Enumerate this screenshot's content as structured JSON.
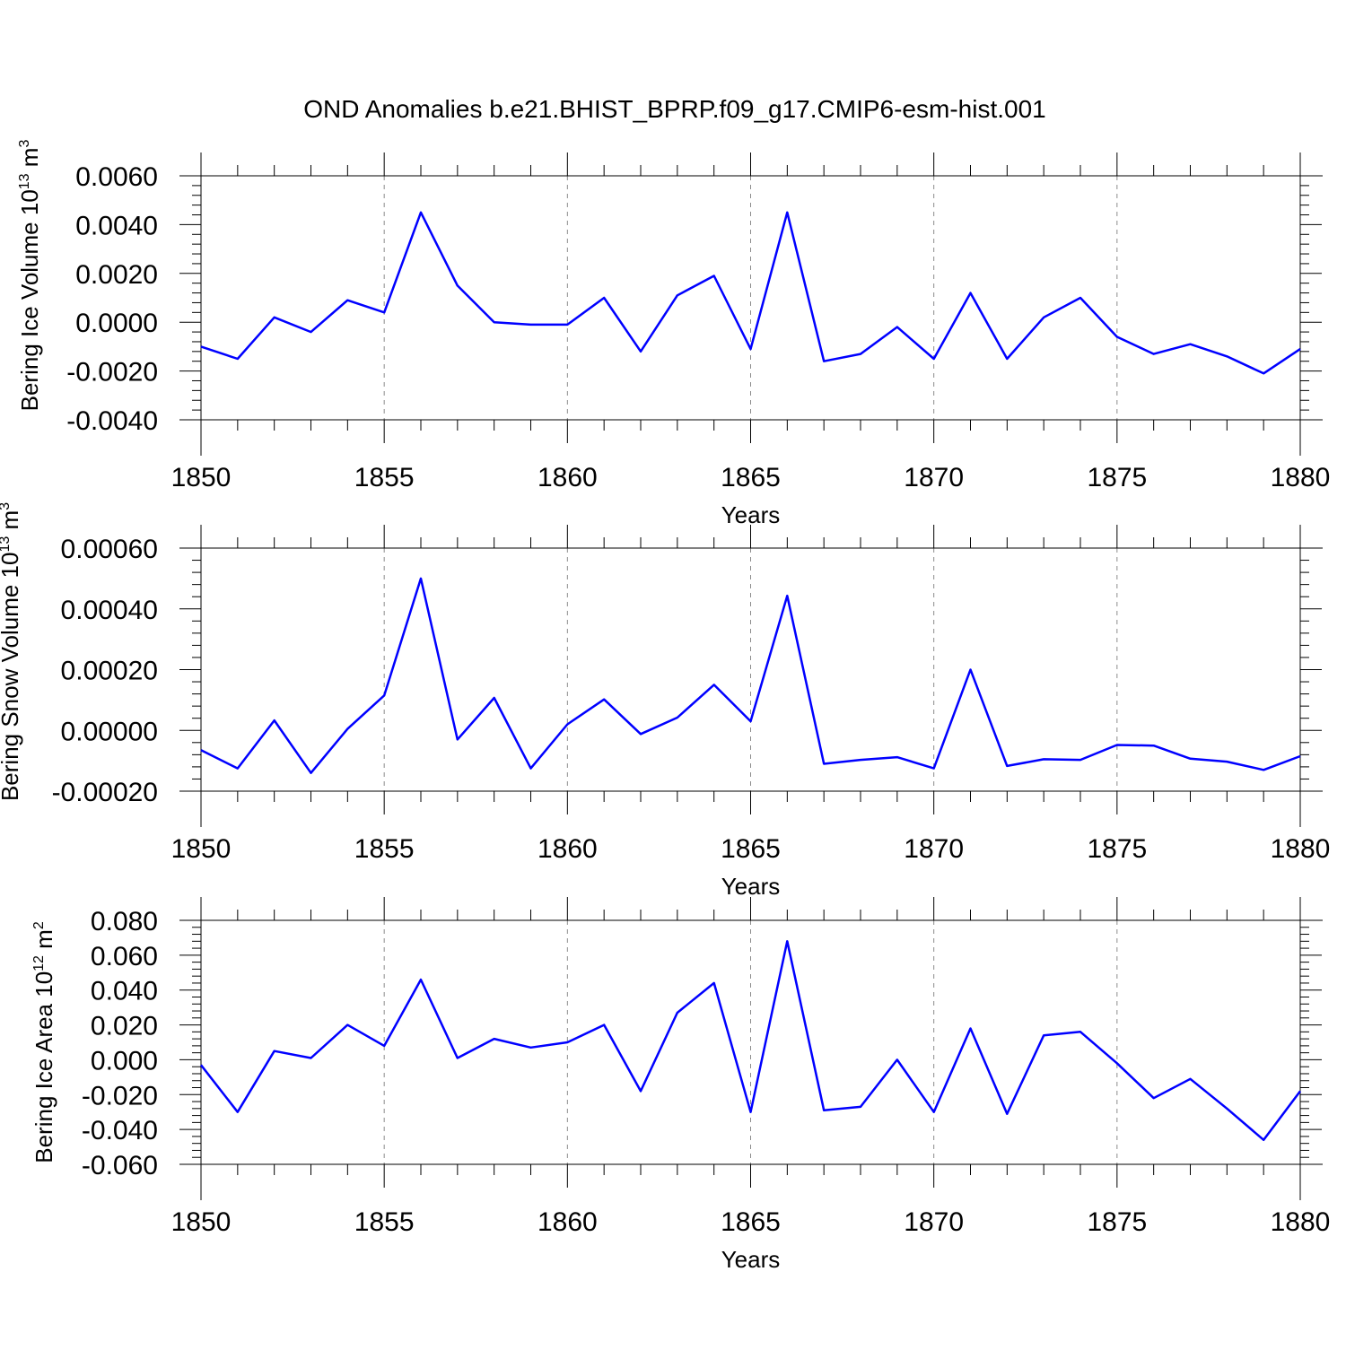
{
  "title": "OND Anomalies b.e21.BHIST_BPRP.f09_g17.CMIP6-esm-hist.001",
  "line_color": "#0000ff",
  "chart_data": [
    {
      "type": "line",
      "ylabel_prefix": "Bering Ice Volume 10",
      "ylabel_exponent": "13",
      "ylabel_unit": " m",
      "ylabel_unit_exponent": "3",
      "xlabel": "Years",
      "xlim": [
        1850,
        1880
      ],
      "ylim": [
        -0.004,
        0.006
      ],
      "xticks": [
        1850,
        1855,
        1860,
        1865,
        1870,
        1875,
        1880
      ],
      "xtick_labels": [
        "1850",
        "1855",
        "1860",
        "1865",
        "1870",
        "1875",
        "1880"
      ],
      "yticks": [
        -0.004,
        -0.002,
        0.0,
        0.002,
        0.004,
        0.006
      ],
      "ytick_labels": [
        "-0.0040",
        "-0.0020",
        "0.0000",
        "0.0020",
        "0.0040",
        "0.0060"
      ],
      "grid": "dashed vertical at major x ticks",
      "x": [
        1850,
        1851,
        1852,
        1853,
        1854,
        1855,
        1856,
        1857,
        1858,
        1859,
        1860,
        1861,
        1862,
        1863,
        1864,
        1865,
        1866,
        1867,
        1868,
        1869,
        1870,
        1871,
        1872,
        1873,
        1874,
        1875,
        1876,
        1877,
        1878,
        1879,
        1880
      ],
      "y": [
        -0.001,
        -0.0015,
        0.0002,
        -0.0004,
        0.0009,
        0.0004,
        0.0045,
        0.0015,
        0.0,
        -0.0001,
        -0.0001,
        0.001,
        -0.0012,
        0.0011,
        0.0019,
        -0.0011,
        0.0045,
        -0.0016,
        -0.0013,
        -0.0002,
        -0.0015,
        0.0012,
        -0.0015,
        0.0002,
        0.001,
        -0.0006,
        -0.0013,
        -0.0009,
        -0.0014,
        -0.0021,
        -0.0011
      ]
    },
    {
      "type": "line",
      "ylabel_prefix": "Bering Snow Volume 10",
      "ylabel_exponent": "13",
      "ylabel_unit": " m",
      "ylabel_unit_exponent": "3",
      "xlabel": "Years",
      "xlim": [
        1850,
        1880
      ],
      "ylim": [
        -0.0002,
        0.0006
      ],
      "xticks": [
        1850,
        1855,
        1860,
        1865,
        1870,
        1875,
        1880
      ],
      "xtick_labels": [
        "1850",
        "1855",
        "1860",
        "1865",
        "1870",
        "1875",
        "1880"
      ],
      "yticks": [
        -0.0002,
        0.0,
        0.0002,
        0.0004,
        0.0006
      ],
      "ytick_labels": [
        "-0.00020",
        "0.00000",
        "0.00020",
        "0.00040",
        "0.00060"
      ],
      "grid": "dashed vertical at major x ticks",
      "x": [
        1850,
        1851,
        1852,
        1853,
        1854,
        1855,
        1856,
        1857,
        1858,
        1859,
        1860,
        1861,
        1862,
        1863,
        1864,
        1865,
        1866,
        1867,
        1868,
        1869,
        1870,
        1871,
        1872,
        1873,
        1874,
        1875,
        1876,
        1877,
        1878,
        1879,
        1880
      ],
      "y": [
        -6.5e-05,
        -0.000125,
        3.3e-05,
        -0.00014,
        5e-06,
        0.000115,
        0.0005,
        -3e-05,
        0.000107,
        -0.000125,
        2e-05,
        0.000102,
        -1.2e-05,
        4.2e-05,
        0.00015,
        3e-05,
        0.000443,
        -0.00011,
        -9.7e-05,
        -8.8e-05,
        -0.000125,
        0.0002,
        -0.000117,
        -9.5e-05,
        -9.7e-05,
        -4.8e-05,
        -5e-05,
        -9.3e-05,
        -0.000103,
        -0.00013,
        -8.5e-05
      ]
    },
    {
      "type": "line",
      "ylabel_prefix": "Bering Ice Area 10",
      "ylabel_exponent": "12",
      "ylabel_unit": " m",
      "ylabel_unit_exponent": "2",
      "xlabel": "Years",
      "xlim": [
        1850,
        1880
      ],
      "ylim": [
        -0.06,
        0.08
      ],
      "xticks": [
        1850,
        1855,
        1860,
        1865,
        1870,
        1875,
        1880
      ],
      "xtick_labels": [
        "1850",
        "1855",
        "1860",
        "1865",
        "1870",
        "1875",
        "1880"
      ],
      "yticks": [
        -0.06,
        -0.04,
        -0.02,
        0.0,
        0.02,
        0.04,
        0.06,
        0.08
      ],
      "ytick_labels": [
        "-0.060",
        "-0.040",
        "-0.020",
        "0.000",
        "0.020",
        "0.040",
        "0.060",
        "0.080"
      ],
      "grid": "dashed vertical at major x ticks",
      "x": [
        1850,
        1851,
        1852,
        1853,
        1854,
        1855,
        1856,
        1857,
        1858,
        1859,
        1860,
        1861,
        1862,
        1863,
        1864,
        1865,
        1866,
        1867,
        1868,
        1869,
        1870,
        1871,
        1872,
        1873,
        1874,
        1875,
        1876,
        1877,
        1878,
        1879,
        1880
      ],
      "y": [
        -0.003,
        -0.03,
        0.005,
        0.001,
        0.02,
        0.008,
        0.046,
        0.001,
        0.012,
        0.007,
        0.01,
        0.02,
        -0.018,
        0.027,
        0.044,
        -0.03,
        0.068,
        -0.029,
        -0.027,
        0.0,
        -0.03,
        0.018,
        -0.031,
        0.014,
        0.016,
        -0.002,
        -0.022,
        -0.011,
        -0.028,
        -0.046,
        -0.018
      ]
    }
  ]
}
